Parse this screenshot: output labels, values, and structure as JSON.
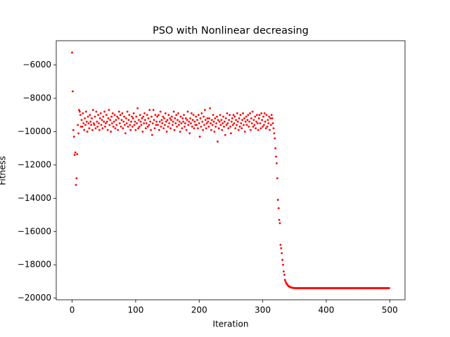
{
  "chart_data": {
    "type": "scatter",
    "title": "PSO with Nonlinear decreasing",
    "x_label": "Iteration",
    "y_label": "Fitness",
    "xlim": [
      -24.95,
      523.95
    ],
    "ylim": [
      -20100,
      -4540
    ],
    "xticks": [
      0,
      100,
      200,
      300,
      400,
      500
    ],
    "yticks": [
      {
        "value": -20000,
        "label": "−20000"
      },
      {
        "value": -18000,
        "label": "−18000"
      },
      {
        "value": -16000,
        "label": "−16000"
      },
      {
        "value": -14000,
        "label": "−14000"
      },
      {
        "value": -12000,
        "label": "−12000"
      },
      {
        "value": -10000,
        "label": "−10000"
      },
      {
        "value": -8000,
        "label": "−8000"
      },
      {
        "value": -6000,
        "label": "−6000"
      }
    ],
    "color": "#ff0000",
    "x": [
      0,
      1,
      2,
      3,
      4,
      5,
      6,
      7,
      8,
      9,
      10,
      11,
      12,
      13,
      14,
      15,
      16,
      17,
      18,
      19,
      20,
      21,
      22,
      23,
      24,
      25,
      26,
      27,
      28,
      29,
      30,
      31,
      32,
      33,
      34,
      35,
      36,
      37,
      38,
      39,
      40,
      41,
      42,
      43,
      44,
      45,
      46,
      47,
      48,
      49,
      50,
      51,
      52,
      53,
      54,
      55,
      56,
      57,
      58,
      59,
      60,
      61,
      62,
      63,
      64,
      65,
      66,
      67,
      68,
      69,
      70,
      71,
      72,
      73,
      74,
      75,
      76,
      77,
      78,
      79,
      80,
      81,
      82,
      83,
      84,
      85,
      86,
      87,
      88,
      89,
      90,
      91,
      92,
      93,
      94,
      95,
      96,
      97,
      98,
      99,
      100,
      101,
      102,
      103,
      104,
      105,
      106,
      107,
      108,
      109,
      110,
      111,
      112,
      113,
      114,
      115,
      116,
      117,
      118,
      119,
      120,
      121,
      122,
      123,
      124,
      125,
      126,
      127,
      128,
      129,
      130,
      131,
      132,
      133,
      134,
      135,
      136,
      137,
      138,
      139,
      140,
      141,
      142,
      143,
      144,
      145,
      146,
      147,
      148,
      149,
      150,
      151,
      152,
      153,
      154,
      155,
      156,
      157,
      158,
      159,
      160,
      161,
      162,
      163,
      164,
      165,
      166,
      167,
      168,
      169,
      170,
      171,
      172,
      173,
      174,
      175,
      176,
      177,
      178,
      179,
      180,
      181,
      182,
      183,
      184,
      185,
      186,
      187,
      188,
      189,
      190,
      191,
      192,
      193,
      194,
      195,
      196,
      197,
      198,
      199,
      200,
      201,
      202,
      203,
      204,
      205,
      206,
      207,
      208,
      209,
      210,
      211,
      212,
      213,
      214,
      215,
      216,
      217,
      218,
      219,
      220,
      221,
      222,
      223,
      224,
      225,
      226,
      227,
      228,
      229,
      230,
      231,
      232,
      233,
      234,
      235,
      236,
      237,
      238,
      239,
      240,
      241,
      242,
      243,
      244,
      245,
      246,
      247,
      248,
      249,
      250,
      251,
      252,
      253,
      254,
      255,
      256,
      257,
      258,
      259,
      260,
      261,
      262,
      263,
      264,
      265,
      266,
      267,
      268,
      269,
      270,
      271,
      272,
      273,
      274,
      275,
      276,
      277,
      278,
      279,
      280,
      281,
      282,
      283,
      284,
      285,
      286,
      287,
      288,
      289,
      290,
      291,
      292,
      293,
      294,
      295,
      296,
      297,
      298,
      299,
      300,
      301,
      302,
      303,
      304,
      305,
      306,
      307,
      308,
      309,
      310,
      311,
      312,
      313,
      314,
      315,
      316,
      317,
      318,
      319,
      320,
      321,
      322,
      323,
      324,
      325,
      326,
      327,
      328,
      329,
      330,
      331,
      332,
      333,
      334,
      335,
      336,
      337,
      338,
      339,
      340,
      341,
      342,
      343,
      344,
      345,
      346,
      347,
      348,
      349,
      350,
      351,
      352,
      353,
      354,
      355,
      356,
      357,
      358,
      359,
      360,
      361,
      362,
      363,
      364,
      365,
      366,
      367,
      368,
      369,
      370,
      371,
      372,
      373,
      374,
      375,
      376,
      377,
      378,
      379,
      380,
      381,
      382,
      383,
      384,
      385,
      386,
      387,
      388,
      389,
      390,
      391,
      392,
      393,
      394,
      395,
      396,
      397,
      398,
      399,
      400,
      401,
      402,
      403,
      404,
      405,
      406,
      407,
      408,
      409,
      410,
      411,
      412,
      413,
      414,
      415,
      416,
      417,
      418,
      419,
      420,
      421,
      422,
      423,
      424,
      425,
      426,
      427,
      428,
      429,
      430,
      431,
      432,
      433,
      434,
      435,
      436,
      437,
      438,
      439,
      440,
      441,
      442,
      443,
      444,
      445,
      446,
      447,
      448,
      449,
      450,
      451,
      452,
      453,
      454,
      455,
      456,
      457,
      458,
      459,
      460,
      461,
      462,
      463,
      464,
      465,
      466,
      467,
      468,
      469,
      470,
      471,
      472,
      473,
      474,
      475,
      476,
      477,
      478,
      479,
      480,
      481,
      482,
      483,
      484,
      485,
      486,
      487,
      488,
      489,
      490,
      491,
      492,
      493,
      494,
      495,
      496,
      497,
      498,
      499
    ],
    "values": [
      -5250,
      -7580,
      -9900,
      -10300,
      -11400,
      -11250,
      -13200,
      -12800,
      -11350,
      -9600,
      -10100,
      -8700,
      -8800,
      -9000,
      -9700,
      -9300,
      -9700,
      -8900,
      -9500,
      -9900,
      -9200,
      -9600,
      -8800,
      -9400,
      -10000,
      -9100,
      -9500,
      -9800,
      -9000,
      -9400,
      -9600,
      -9200,
      -9900,
      -8700,
      -9500,
      -9600,
      -9100,
      -9800,
      -8800,
      -9400,
      -9700,
      -9000,
      -9500,
      -9900,
      -9200,
      -8900,
      -9600,
      -9300,
      -9800,
      -9100,
      -9400,
      -8800,
      -9700,
      -9500,
      -9000,
      -9400,
      -9900,
      -9200,
      -8700,
      -9600,
      -9300,
      -10000,
      -9100,
      -9500,
      -8900,
      -9700,
      -9400,
      -9000,
      -9800,
      -9300,
      -9600,
      -9100,
      -9900,
      -9200,
      -8800,
      -9500,
      -9000,
      -9700,
      -9300,
      -8900,
      -9800,
      -9400,
      -9100,
      -9600,
      -10100,
      -9200,
      -9500,
      -8800,
      -9700,
      -9300,
      -9000,
      -9600,
      -9900,
      -9400,
      -9100,
      -9700,
      -9200,
      -8900,
      -9600,
      -9400,
      -9900,
      -9100,
      -9500,
      -8600,
      -9800,
      -9300,
      -9700,
      -9000,
      -9400,
      -9600,
      -9200,
      -10000,
      -9100,
      -9500,
      -8900,
      -9300,
      -9800,
      -9500,
      -9000,
      -9700,
      -9200,
      -9600,
      -8700,
      -9400,
      -9900,
      -9100,
      -10200,
      -9500,
      -8700,
      -9300,
      -9800,
      -9000,
      -9600,
      -9400,
      -9100,
      -9600,
      -9000,
      -9900,
      -9400,
      -8800,
      -9700,
      -9300,
      -9500,
      -9100,
      -9800,
      -9200,
      -9600,
      -8900,
      -9400,
      -10000,
      -9300,
      -9700,
      -9000,
      -9500,
      -9200,
      -9800,
      -9300,
      -9100,
      -9600,
      -9400,
      -8800,
      -9900,
      -9200,
      -9500,
      -9000,
      -9700,
      -9300,
      -8900,
      -9600,
      -9400,
      -10000,
      -9100,
      -9500,
      -9800,
      -9200,
      -9400,
      -9000,
      -9700,
      -9500,
      -9200,
      -9900,
      -9300,
      -8800,
      -9600,
      -9400,
      -10100,
      -9200,
      -9500,
      -8900,
      -9700,
      -9300,
      -9000,
      -9800,
      -9400,
      -9600,
      -9100,
      -9600,
      -9300,
      -9800,
      -9000,
      -9500,
      -10300,
      -9200,
      -9700,
      -8900,
      -9400,
      -9900,
      -9100,
      -9600,
      -8700,
      -9300,
      -9800,
      -9500,
      -9200,
      -9400,
      -9700,
      -9200,
      -8600,
      -9500,
      -9900,
      -9300,
      -9600,
      -9000,
      -9400,
      -10000,
      -9200,
      -9700,
      -9500,
      -9100,
      -10600,
      -9300,
      -9800,
      -9400,
      -9000,
      -9600,
      -9300,
      -9900,
      -9500,
      -9100,
      -9700,
      -9400,
      -10200,
      -9200,
      -9600,
      -8900,
      -9500,
      -9800,
      -9300,
      -9000,
      -9700,
      -10100,
      -9400,
      -9200,
      -9600,
      -9000,
      -9500,
      -9100,
      -9800,
      -9300,
      -9600,
      -8900,
      -9400,
      -9900,
      -9200,
      -9700,
      -9000,
      -9500,
      -9800,
      -9300,
      -8900,
      -9600,
      -9200,
      -10000,
      -9400,
      -9100,
      -9600,
      -9300,
      -9000,
      -9700,
      -9400,
      -8900,
      -9900,
      -9200,
      -9500,
      -8800,
      -9700,
      -9300,
      -9600,
      -9100,
      -9800,
      -9400,
      -9000,
      -9500,
      -9900,
      -9200,
      -9000,
      -9500,
      -9800,
      -8900,
      -9300,
      -9700,
      -9100,
      -9600,
      -8900,
      -9400,
      -9800,
      -9000,
      -9700,
      -9300,
      -9500,
      -9100,
      -9900,
      -9200,
      -9600,
      -9000,
      -9200,
      -9500,
      -9800,
      -10100,
      -10400,
      -11000,
      -11500,
      -11900,
      -12800,
      -14100,
      -14600,
      -15300,
      -15500,
      -16800,
      -17000,
      -17300,
      -17700,
      -18000,
      -18400,
      -18600,
      -18900,
      -19000,
      -19100,
      -19150,
      -19200,
      -19250,
      -19300,
      -19300,
      -19330,
      -19350,
      -19360,
      -19370,
      -19380,
      -19390,
      -19390,
      -19400,
      -19400,
      -19400,
      -19400,
      -19400,
      -19400,
      -19400,
      -19400,
      -19400,
      -19400,
      -19400,
      -19400,
      -19400,
      -19400,
      -19400,
      -19400,
      -19400,
      -19400,
      -19400,
      -19400,
      -19400,
      -19400,
      -19400,
      -19400,
      -19400,
      -19400,
      -19400,
      -19400,
      -19400,
      -19400,
      -19400,
      -19400,
      -19400,
      -19400,
      -19400,
      -19400,
      -19400,
      -19400,
      -19400,
      -19400,
      -19400,
      -19400,
      -19400,
      -19400,
      -19400,
      -19400,
      -19400,
      -19400,
      -19400,
      -19400,
      -19400,
      -19400,
      -19400,
      -19400,
      -19400,
      -19400,
      -19400,
      -19400,
      -19400,
      -19400,
      -19400,
      -19400,
      -19400,
      -19400,
      -19400,
      -19400,
      -19400,
      -19400,
      -19400,
      -19400,
      -19400,
      -19400,
      -19400,
      -19400,
      -19400,
      -19400,
      -19400,
      -19400,
      -19400,
      -19400,
      -19400,
      -19400,
      -19400,
      -19400,
      -19400,
      -19400,
      -19400,
      -19400,
      -19400,
      -19400,
      -19400,
      -19400,
      -19400,
      -19400,
      -19400,
      -19400,
      -19400,
      -19400,
      -19400,
      -19400,
      -19400,
      -19400,
      -19400,
      -19400,
      -19400,
      -19400,
      -19400,
      -19400,
      -19400,
      -19400,
      -19400,
      -19400,
      -19400,
      -19400,
      -19400,
      -19400,
      -19400,
      -19400,
      -19400,
      -19400,
      -19400,
      -19400,
      -19400,
      -19400,
      -19400,
      -19400,
      -19400,
      -19400,
      -19400,
      -19400,
      -19400,
      -19400,
      -19400,
      -19400,
      -19400,
      -19400,
      -19400,
      -19400,
      -19400,
      -19400,
      -19400,
      -19400,
      -19400,
      -19400,
      -19400,
      -19400,
      -19400,
      -19400,
      -19400,
      -19400
    ]
  }
}
